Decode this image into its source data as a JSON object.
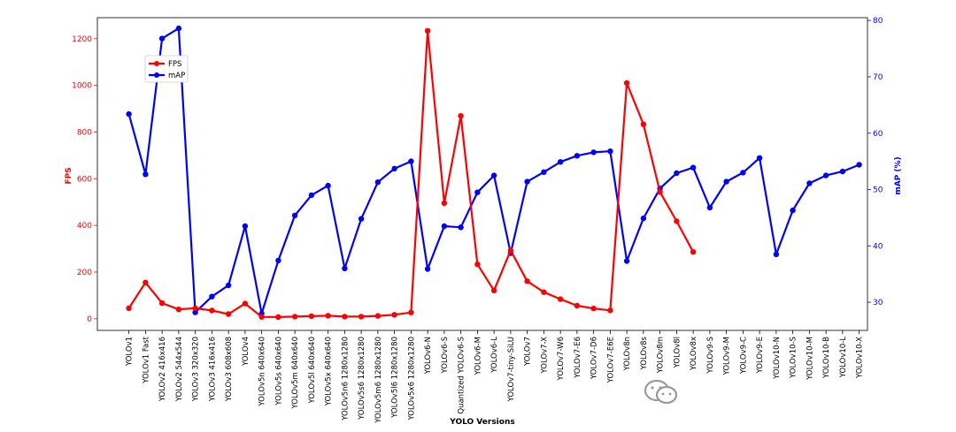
{
  "chart_data": {
    "type": "line",
    "xlabel": "YOLO Versions",
    "ylabel_left": "FPS",
    "ylabel_right": "mAP (%)",
    "ylim_left": [
      -50,
      1290
    ],
    "ylim_right": [
      25,
      80.5
    ],
    "yticks_left": [
      0,
      200,
      400,
      600,
      800,
      1000,
      1200
    ],
    "yticks_right": [
      30,
      40,
      50,
      60,
      70,
      80
    ],
    "grid": false,
    "legend_position": "upper-left",
    "categories": [
      "YOLOv1",
      "YOLOv1 Fast",
      "YOLOv2 416x416",
      "YOLOv2 544x544",
      "YOLOv3 320x320",
      "YOLOv3 416x416",
      "YOLOv3 608x608",
      "YOLOv4",
      "YOLOv5n 640x640",
      "YOLOv5s 640x640",
      "YOLOv5m 640x640",
      "YOLOv5l 640x640",
      "YOLOv5x 640x640",
      "YOLOv5n6 1280x1280",
      "YOLOv5s6 1280x1280",
      "YOLOv5m6 1280x1280",
      "YOLOv5l6 1280x1280",
      "YOLOv5x6 1280x1280",
      "YOLOv6-N",
      "YOLOv6-S",
      "Quantized YOLOv6-S",
      "YOLOv6-M",
      "YOLOv6-L",
      "YOLOv7-tiny-SiLU",
      "YOLOv7",
      "YOLOv7-X",
      "YOLOv7-W6",
      "YOLOv7-E6",
      "YOLOv7-D6",
      "YOLOv7-E6E",
      "YOLOv8n",
      "YOLOv8s",
      "YOLOv8m",
      "YOLOv8l",
      "YOLOv8x",
      "YOLOv9-S",
      "YOLOv9-M",
      "YOLOv9-C",
      "YOLOv9-E",
      "YOLOv10-N",
      "YOLOv10-S",
      "YOLOv10-M",
      "YOLOv10-B",
      "YOLOv10-L",
      "YOLOv10-X"
    ],
    "series": [
      {
        "name": "FPS",
        "axis": "left",
        "color": "#ff0000",
        "values": [
          45,
          155,
          67,
          40,
          45,
          35,
          20,
          65,
          8,
          7,
          9,
          11,
          13,
          9,
          9,
          12,
          17,
          27,
          1234,
          495,
          869,
          233,
          121,
          293,
          161,
          114,
          84,
          56,
          44,
          36,
          1010,
          833,
          543,
          418,
          286,
          null,
          null,
          null,
          null,
          null,
          null,
          null,
          null,
          null,
          null
        ]
      },
      {
        "name": "mAP",
        "axis": "right",
        "color": "#0000ff",
        "values": [
          63.4,
          52.7,
          76.8,
          78.6,
          28.2,
          31.0,
          33.0,
          43.5,
          28.0,
          37.4,
          45.4,
          49.0,
          50.7,
          36.0,
          44.8,
          51.3,
          53.7,
          55.0,
          35.9,
          43.5,
          43.3,
          49.5,
          52.5,
          38.7,
          51.4,
          53.1,
          54.9,
          56.0,
          56.6,
          56.8,
          37.3,
          44.9,
          50.2,
          52.9,
          53.9,
          46.8,
          51.4,
          53.0,
          55.6,
          38.5,
          46.3,
          51.1,
          52.5,
          53.2,
          54.4
        ]
      }
    ]
  }
}
